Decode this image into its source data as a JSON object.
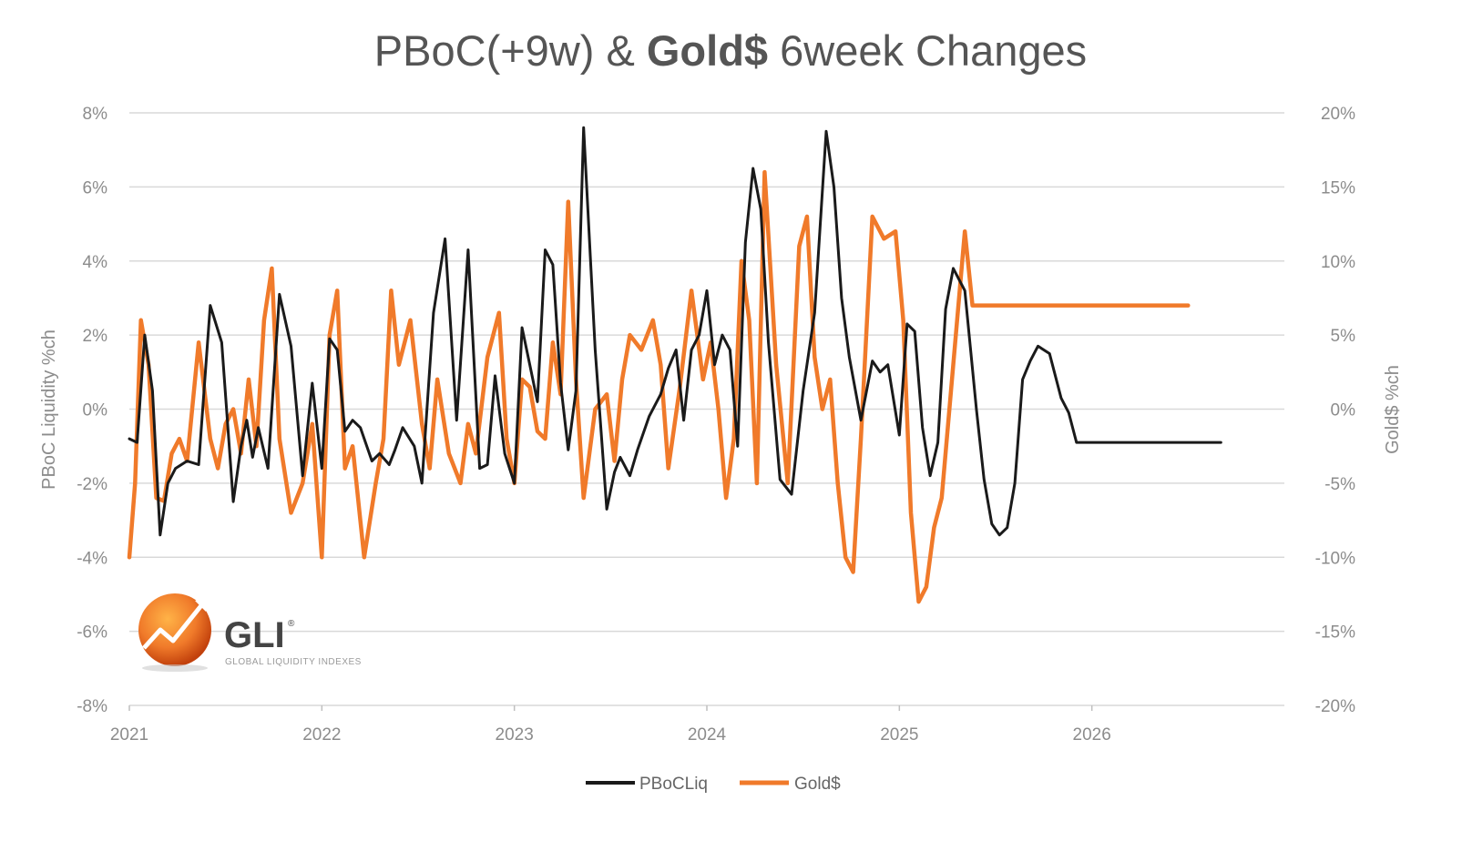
{
  "chart_data": {
    "type": "line",
    "title": {
      "prefix": "PBoC(+9w) & ",
      "bold": "Gold$",
      "suffix": " 6week Changes"
    },
    "ylabel_left": "PBoC Liquidity %ch",
    "ylabel_right": "Gold$ %ch",
    "y_left_ticks": [
      "8%",
      "6%",
      "4%",
      "2%",
      "0%",
      "-2%",
      "-4%",
      "-6%",
      "-8%"
    ],
    "y_right_ticks": [
      "20%",
      "15%",
      "10%",
      "5%",
      "0%",
      "-5%",
      "-10%",
      "-15%",
      "-20%"
    ],
    "ylim_left": [
      -8,
      8
    ],
    "ylim_right": [
      -20,
      20
    ],
    "x_ticks": [
      "2021",
      "2022",
      "2023",
      "2024",
      "2025",
      "2026"
    ],
    "xlim": [
      2021.0,
      2027.0
    ],
    "grid": true,
    "legend_position": "bottom-center",
    "series": [
      {
        "name": "PBoCLiq",
        "axis": "left",
        "color": "#1a1a1a",
        "x": [
          2021.0,
          2021.04,
          2021.08,
          2021.12,
          2021.16,
          2021.2,
          2021.24,
          2021.3,
          2021.36,
          2021.42,
          2021.48,
          2021.54,
          2021.58,
          2021.61,
          2021.64,
          2021.67,
          2021.72,
          2021.78,
          2021.84,
          2021.9,
          2021.95,
          2022.0,
          2022.04,
          2022.08,
          2022.12,
          2022.16,
          2022.2,
          2022.26,
          2022.3,
          2022.35,
          2022.38,
          2022.42,
          2022.48,
          2022.52,
          2022.58,
          2022.64,
          2022.7,
          2022.76,
          2022.82,
          2022.86,
          2022.9,
          2022.95,
          2023.0,
          2023.04,
          2023.08,
          2023.12,
          2023.16,
          2023.2,
          2023.24,
          2023.28,
          2023.32,
          2023.36,
          2023.42,
          2023.48,
          2023.52,
          2023.55,
          2023.6,
          2023.64,
          2023.7,
          2023.76,
          2023.8,
          2023.84,
          2023.88,
          2023.92,
          2023.96,
          2024.0,
          2024.04,
          2024.08,
          2024.12,
          2024.16,
          2024.2,
          2024.24,
          2024.28,
          2024.32,
          2024.38,
          2024.44,
          2024.5,
          2024.56,
          2024.62,
          2024.66,
          2024.7,
          2024.74,
          2024.8,
          2024.86,
          2024.9,
          2024.94,
          2025.0,
          2025.04,
          2025.08,
          2025.12,
          2025.16,
          2025.2,
          2025.24,
          2025.28,
          2025.34,
          2025.4,
          2025.44,
          2025.48,
          2025.52,
          2025.56,
          2025.6,
          2025.64,
          2025.68,
          2025.72,
          2025.78,
          2025.84,
          2025.88,
          2025.92,
          2025.96,
          2026.0,
          2026.04,
          2026.08,
          2026.12,
          2026.16,
          2026.2,
          2026.24,
          2026.28,
          2026.32,
          2026.36,
          2026.4,
          2026.44,
          2026.48,
          2026.52,
          2026.56,
          2026.6,
          2026.64,
          2026.67
        ],
        "y": [
          -0.8,
          -0.9,
          2.0,
          0.5,
          -3.4,
          -2.0,
          -1.6,
          -1.4,
          -1.5,
          2.8,
          1.8,
          -2.5,
          -1.0,
          -0.3,
          -1.3,
          -0.5,
          -1.6,
          3.1,
          1.7,
          -1.8,
          0.7,
          -1.6,
          1.9,
          1.6,
          -0.6,
          -0.3,
          -0.5,
          -1.4,
          -1.2,
          -1.5,
          -1.1,
          -0.5,
          -1.0,
          -2.0,
          2.6,
          4.6,
          -0.3,
          4.3,
          -1.6,
          -1.5,
          0.9,
          -1.2,
          -2.0,
          2.2,
          1.2,
          0.2,
          4.3,
          3.9,
          0.7,
          -1.1,
          0.5,
          7.6,
          1.6,
          -2.7,
          -1.7,
          -1.3,
          -1.8,
          -1.1,
          -0.2,
          0.4,
          1.1,
          1.6,
          -0.3,
          1.6,
          2.0,
          3.2,
          1.2,
          2.0,
          1.6,
          -1.0,
          4.5,
          6.5,
          5.4,
          1.8,
          -1.9,
          -2.3,
          0.5,
          2.6,
          7.5,
          6.0,
          3.0,
          1.4,
          -0.3,
          1.3,
          1.0,
          1.2,
          -0.7,
          2.3,
          2.1,
          -0.5,
          -1.8,
          -0.9,
          2.7,
          3.8,
          3.2,
          0.0,
          -1.9,
          -3.1,
          -3.4,
          -3.2,
          -2.0,
          0.8,
          1.3,
          1.7,
          1.5,
          0.3,
          -0.1,
          -0.9,
          -0.9,
          -0.9,
          -0.9,
          -0.9,
          -0.9,
          -0.9,
          -0.9,
          -0.9,
          -0.9,
          -0.9,
          -0.9,
          -0.9,
          -0.9,
          -0.9,
          -0.9,
          -0.9,
          -0.9,
          -0.9,
          -0.9
        ]
      },
      {
        "name": "Gold$",
        "axis": "right",
        "color": "#f07a2a",
        "x": [
          2021.0,
          2021.03,
          2021.06,
          2021.1,
          2021.14,
          2021.18,
          2021.22,
          2021.26,
          2021.3,
          2021.36,
          2021.42,
          2021.46,
          2021.5,
          2021.54,
          2021.58,
          2021.62,
          2021.66,
          2021.7,
          2021.74,
          2021.78,
          2021.84,
          2021.9,
          2021.95,
          2022.0,
          2022.04,
          2022.08,
          2022.12,
          2022.16,
          2022.22,
          2022.28,
          2022.32,
          2022.36,
          2022.4,
          2022.46,
          2022.52,
          2022.56,
          2022.6,
          2022.66,
          2022.72,
          2022.76,
          2022.8,
          2022.86,
          2022.92,
          2022.96,
          2023.0,
          2023.04,
          2023.08,
          2023.12,
          2023.16,
          2023.2,
          2023.24,
          2023.28,
          2023.32,
          2023.36,
          2023.42,
          2023.48,
          2023.52,
          2023.56,
          2023.6,
          2023.66,
          2023.72,
          2023.76,
          2023.8,
          2023.86,
          2023.92,
          2023.98,
          2024.02,
          2024.06,
          2024.1,
          2024.14,
          2024.18,
          2024.22,
          2024.26,
          2024.3,
          2024.36,
          2024.42,
          2024.48,
          2024.52,
          2024.56,
          2024.6,
          2024.64,
          2024.68,
          2024.72,
          2024.76,
          2024.8,
          2024.86,
          2024.92,
          2024.98,
          2025.02,
          2025.06,
          2025.1,
          2025.14,
          2025.18,
          2025.22,
          2025.28,
          2025.34,
          2025.38,
          2025.42,
          2025.46,
          2025.5,
          2025.54,
          2025.58,
          2025.62,
          2025.66,
          2025.72,
          2025.78,
          2025.82,
          2025.86,
          2025.9,
          2025.94,
          2025.98,
          2026.02,
          2026.06,
          2026.1,
          2026.14,
          2026.18,
          2026.22,
          2026.26,
          2026.3,
          2026.34,
          2026.38,
          2026.42,
          2026.46,
          2026.5
        ],
        "y": [
          -10.0,
          -5.0,
          6.0,
          3.0,
          -6.0,
          -6.2,
          -3.0,
          -2.0,
          -3.5,
          4.5,
          -2.0,
          -4.0,
          -1.0,
          0.0,
          -3.0,
          2.0,
          -2.5,
          6.0,
          9.5,
          -2.0,
          -7.0,
          -5.0,
          -1.0,
          -10.0,
          5.0,
          8.0,
          -4.0,
          -2.5,
          -10.0,
          -5.0,
          -2.0,
          8.0,
          3.0,
          6.0,
          -1.0,
          -4.0,
          2.0,
          -3.0,
          -5.0,
          -1.0,
          -3.0,
          3.5,
          6.5,
          -2.0,
          -5.0,
          2.0,
          1.5,
          -1.5,
          -2.0,
          4.5,
          1.0,
          14.0,
          2.0,
          -6.0,
          0.0,
          1.0,
          -3.5,
          2.0,
          5.0,
          4.0,
          6.0,
          3.0,
          -4.0,
          1.5,
          8.0,
          2.0,
          4.5,
          0.0,
          -6.0,
          -2.0,
          10.0,
          6.0,
          -5.0,
          16.0,
          3.0,
          -5.0,
          11.0,
          13.0,
          3.5,
          0.0,
          2.0,
          -5.0,
          -10.0,
          -11.0,
          -2.0,
          13.0,
          11.5,
          12.0,
          6.0,
          -7.0,
          -13.0,
          -12.0,
          -8.0,
          -6.0,
          3.0,
          12.0,
          7.0,
          7.0,
          7.0,
          7.0,
          7.0,
          7.0,
          7.0,
          7.0,
          7.0,
          7.0,
          7.0,
          7.0,
          7.0,
          7.0,
          7.0,
          7.0,
          7.0,
          7.0,
          7.0,
          7.0,
          7.0,
          7.0,
          7.0,
          7.0,
          7.0,
          7.0,
          7.0,
          7.0
        ]
      }
    ]
  },
  "logo": {
    "name": "GLI",
    "mark": "®",
    "subtitle": "GLOBAL LIQUIDITY INDEXES"
  },
  "legend": {
    "items": [
      "PBoCLiq",
      "Gold$"
    ]
  }
}
